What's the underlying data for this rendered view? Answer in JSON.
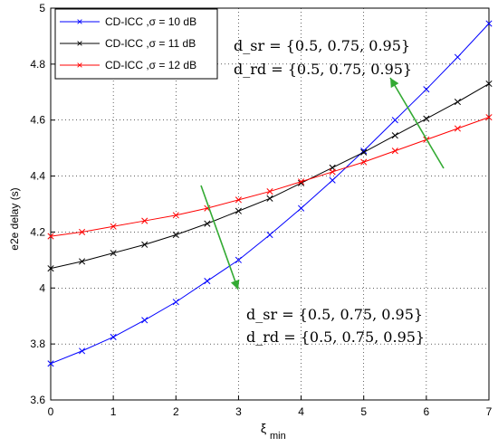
{
  "chart_data": {
    "type": "line",
    "xlabel": "ξ",
    "xlabel_sub": "min",
    "ylabel": "e2e delay (s)",
    "xlim": [
      0,
      7
    ],
    "ylim": [
      3.6,
      5.0
    ],
    "x_ticks": [
      "0",
      "1",
      "2",
      "3",
      "4",
      "5",
      "6",
      "7"
    ],
    "y_ticks": [
      "3.6",
      "3.8",
      "4",
      "4.2",
      "4.4",
      "4.6",
      "4.8",
      "5"
    ],
    "grid": true,
    "legend_position": "top-left",
    "x": [
      0,
      0.5,
      1,
      1.5,
      2,
      2.5,
      3,
      3.5,
      4,
      4.5,
      5,
      5.5,
      6,
      6.5,
      7
    ],
    "series": [
      {
        "name": "CD-ICC ,σ = 10 dB",
        "color": "#0000ff",
        "marker": "x",
        "values": [
          3.73,
          3.775,
          3.825,
          3.885,
          3.95,
          4.025,
          4.1,
          4.19,
          4.285,
          4.385,
          4.49,
          4.6,
          4.71,
          4.825,
          4.945
        ]
      },
      {
        "name": "CD-ICC ,σ = 11 dB",
        "color": "#000000",
        "marker": "x",
        "values": [
          4.07,
          4.095,
          4.125,
          4.155,
          4.19,
          4.23,
          4.275,
          4.32,
          4.375,
          4.43,
          4.485,
          4.545,
          4.605,
          4.665,
          4.73
        ]
      },
      {
        "name": "CD-ICC ,σ = 12 dB",
        "color": "#ff0000",
        "marker": "x",
        "values": [
          4.185,
          4.2,
          4.22,
          4.24,
          4.26,
          4.285,
          4.315,
          4.345,
          4.38,
          4.415,
          4.45,
          4.49,
          4.53,
          4.57,
          4.61
        ]
      }
    ],
    "annotations": [
      {
        "line1": "d_sr = {0.5, 0.75, 0.95}",
        "line2": "d_rd = {0.5, 0.75, 0.95}"
      },
      {
        "line1": "d_sr = {0.5, 0.75, 0.95}",
        "line2": "d_rd = {0.5, 0.75, 0.95}"
      }
    ],
    "arrow_color": "#33aa33"
  }
}
